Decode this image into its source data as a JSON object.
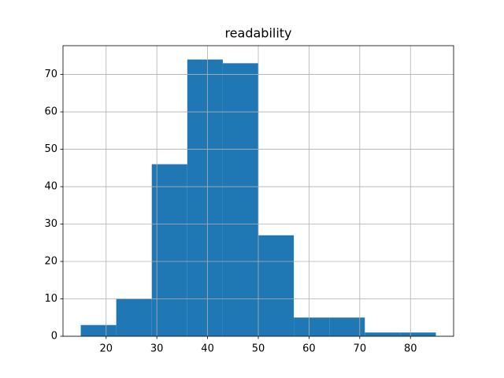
{
  "chart_data": {
    "type": "histogram",
    "title": "readability",
    "bins": [
      15,
      22,
      29,
      36,
      43,
      50,
      57,
      64,
      71,
      78,
      85
    ],
    "counts": [
      3,
      10,
      46,
      74,
      73,
      27,
      5,
      5,
      1,
      1
    ],
    "color": "#1f77b4",
    "xlim": [
      11.5,
      88.5
    ],
    "xticks": [
      20,
      30,
      40,
      50,
      60,
      70,
      80
    ],
    "ylim": [
      0,
      77.7
    ],
    "yticks": [
      0,
      10,
      20,
      30,
      40,
      50,
      60,
      70
    ],
    "grid": true
  }
}
